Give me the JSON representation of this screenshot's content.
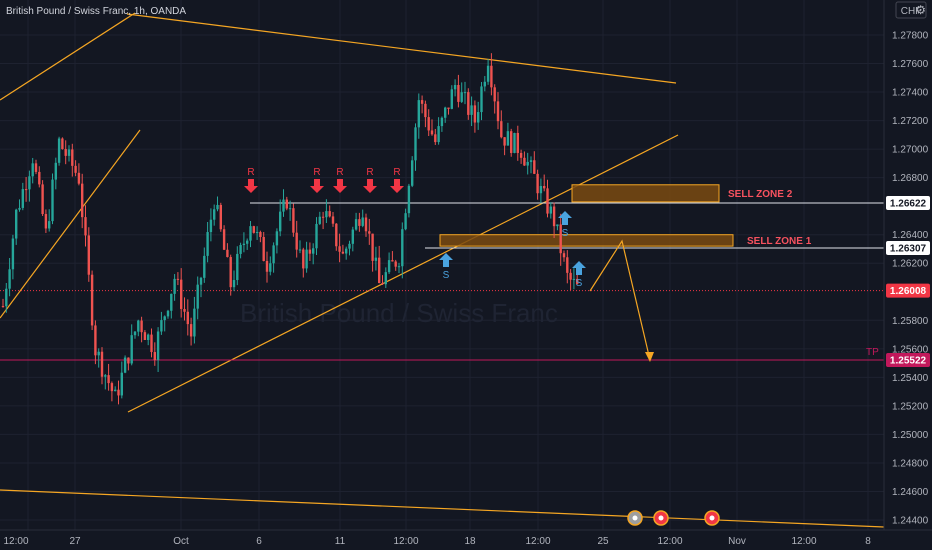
{
  "symbol": {
    "title": "British Pound / Swiss Franc, 1h, OANDA",
    "currency": "CHF",
    "watermark": "British Pound / Swiss Franc"
  },
  "colors": {
    "background": "#131722",
    "grid": "#1e2230",
    "axis_text": "#b2b5be",
    "candle_up": "#26a69a",
    "candle_down": "#ef5350",
    "trendline": "#f5a623",
    "zone_fill": "#7a4a10",
    "zone_border": "#f5a623",
    "zone_text": "#f7525f",
    "level_line": "#e0e3eb",
    "resistance_marker": "#f23645",
    "support_marker": "#4aa3df",
    "tp_line": "#c2185b",
    "last_price_bg": "#f23645"
  },
  "chart_data": {
    "type": "candlestick",
    "timeframe": "1h",
    "y_axis": {
      "ticks": [
        "1.27800",
        "1.27600",
        "1.27400",
        "1.27200",
        "1.27000",
        "1.26800",
        "1.26400",
        "1.26200",
        "1.25800",
        "1.25600",
        "1.25400",
        "1.25200",
        "1.25000",
        "1.24800",
        "1.24600",
        "1.24400"
      ],
      "range": [
        1.2437,
        1.2796
      ]
    },
    "x_axis": {
      "ticks": [
        "12:00",
        "27",
        "Oct",
        "6",
        "11",
        "12:00",
        "18",
        "12:00",
        "25",
        "12:00",
        "Nov",
        "12:00",
        "8"
      ]
    },
    "price_labels": [
      {
        "name": "level-sell-2",
        "text": "1.26622",
        "value": 1.26622
      },
      {
        "name": "level-sell-1",
        "text": "1.26307",
        "value": 1.26307
      },
      {
        "name": "last-price",
        "text": "1.26008",
        "value": 1.26008
      },
      {
        "name": "tp",
        "text": "1.25522",
        "value": 1.25522
      }
    ],
    "zones": [
      {
        "label": "SELL ZONE 2",
        "top": 1.2675,
        "bottom": 1.2663
      },
      {
        "label": "SELL ZONE 1",
        "top": 1.264,
        "bottom": 1.2632
      }
    ],
    "tp_label": "TP",
    "r_label": "R",
    "s_label": "S",
    "candles_approx": [
      {
        "t": 0,
        "c": 1.259
      },
      {
        "t": 4,
        "c": 1.2655
      },
      {
        "t": 9,
        "c": 1.2695
      },
      {
        "t": 13,
        "c": 1.264
      },
      {
        "t": 17,
        "c": 1.2705
      },
      {
        "t": 23,
        "c": 1.268
      },
      {
        "t": 28,
        "c": 1.256
      },
      {
        "t": 34,
        "c": 1.2525
      },
      {
        "t": 41,
        "c": 1.258
      },
      {
        "t": 46,
        "c": 1.256
      },
      {
        "t": 52,
        "c": 1.261
      },
      {
        "t": 57,
        "c": 1.257
      },
      {
        "t": 64,
        "c": 1.2665
      },
      {
        "t": 69,
        "c": 1.2605
      },
      {
        "t": 75,
        "c": 1.265
      },
      {
        "t": 80,
        "c": 1.262
      },
      {
        "t": 86,
        "c": 1.2665
      },
      {
        "t": 91,
        "c": 1.2615
      },
      {
        "t": 97,
        "c": 1.2658
      },
      {
        "t": 103,
        "c": 1.2625
      },
      {
        "t": 109,
        "c": 1.266
      },
      {
        "t": 114,
        "c": 1.2605
      },
      {
        "t": 120,
        "c": 1.2625
      },
      {
        "t": 126,
        "c": 1.2735
      },
      {
        "t": 131,
        "c": 1.2705
      },
      {
        "t": 137,
        "c": 1.2745
      },
      {
        "t": 143,
        "c": 1.272
      },
      {
        "t": 147,
        "c": 1.2765
      },
      {
        "t": 151,
        "c": 1.271
      },
      {
        "t": 157,
        "c": 1.27
      },
      {
        "t": 163,
        "c": 1.267
      },
      {
        "t": 167,
        "c": 1.265
      },
      {
        "t": 171,
        "c": 1.261
      },
      {
        "t": 175,
        "c": 1.26
      }
    ]
  }
}
